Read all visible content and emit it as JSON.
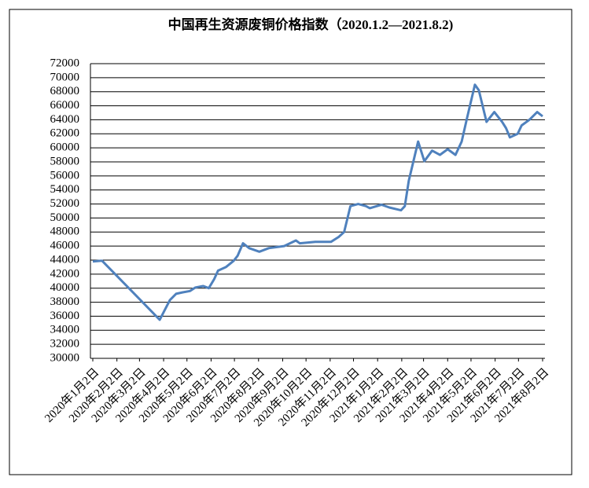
{
  "chart_data": {
    "type": "line",
    "title": "中国再生资源废铜价格指数（2020.1.2—2021.8.2)",
    "x": [
      "2020-01-02",
      "2020-01-12",
      "2020-01-14",
      "2020-03-28",
      "2020-04-10",
      "2020-04-18",
      "2020-04-26",
      "2020-05-06",
      "2020-05-13",
      "2020-05-23",
      "2020-05-30",
      "2020-06-06",
      "2020-06-11",
      "2020-06-21",
      "2020-07-01",
      "2020-07-06",
      "2020-07-13",
      "2020-07-21",
      "2020-08-03",
      "2020-08-15",
      "2020-09-04",
      "2020-09-19",
      "2020-09-24",
      "2020-10-14",
      "2020-11-03",
      "2020-11-13",
      "2020-11-20",
      "2020-11-28",
      "2020-12-08",
      "2020-12-18",
      "2020-12-23",
      "2021-01-07",
      "2021-01-17",
      "2021-02-01",
      "2021-02-06",
      "2021-02-11",
      "2021-02-23",
      "2021-03-03",
      "2021-03-13",
      "2021-03-23",
      "2021-04-02",
      "2021-04-12",
      "2021-04-20",
      "2021-04-27",
      "2021-05-07",
      "2021-05-12",
      "2021-05-22",
      "2021-06-01",
      "2021-06-11",
      "2021-06-16",
      "2021-06-21",
      "2021-07-01",
      "2021-07-06",
      "2021-07-16",
      "2021-07-26",
      "2021-08-02"
    ],
    "series": [
      {
        "color": "#4f81bd",
        "values": [
          43800,
          43900,
          43900,
          35500,
          38300,
          39200,
          39400,
          39600,
          40100,
          40300,
          40000,
          41300,
          42500,
          43000,
          43900,
          44600,
          46400,
          45700,
          45200,
          45700,
          46000,
          46800,
          46400,
          46600,
          46600,
          47300,
          48000,
          51700,
          52000,
          51700,
          51400,
          51900,
          51500,
          51100,
          51700,
          55300,
          60900,
          58100,
          59600,
          59000,
          59800,
          59000,
          60900,
          64300,
          69000,
          68200,
          63700,
          65100,
          63700,
          62800,
          61500,
          62000,
          63200,
          64000,
          65100,
          64500
        ]
      }
    ],
    "xlim": [
      "2020-01-02",
      "2021-08-02"
    ],
    "xticks": [
      {
        "value": "2020-01-02",
        "label": "2020年1月2日"
      },
      {
        "value": "2020-02-02",
        "label": "2020年2月2日"
      },
      {
        "value": "2020-03-02",
        "label": "2020年3月2日"
      },
      {
        "value": "2020-04-02",
        "label": "2020年4月2日"
      },
      {
        "value": "2020-05-02",
        "label": "2020年5月2日"
      },
      {
        "value": "2020-06-02",
        "label": "2020年6月2日"
      },
      {
        "value": "2020-07-02",
        "label": "2020年7月2日"
      },
      {
        "value": "2020-08-02",
        "label": "2020年8月2日"
      },
      {
        "value": "2020-09-02",
        "label": "2020年9月2日"
      },
      {
        "value": "2020-10-02",
        "label": "2020年10月2日"
      },
      {
        "value": "2020-11-02",
        "label": "2020年11月2日"
      },
      {
        "value": "2020-12-02",
        "label": "2020年12月2日"
      },
      {
        "value": "2021-01-02",
        "label": "2021年1月2日"
      },
      {
        "value": "2021-02-02",
        "label": "2021年2月2日"
      },
      {
        "value": "2021-03-02",
        "label": "2021年3月2日"
      },
      {
        "value": "2021-04-02",
        "label": "2021年4月2日"
      },
      {
        "value": "2021-05-02",
        "label": "2021年5月2日"
      },
      {
        "value": "2021-06-02",
        "label": "2021年6月2日"
      },
      {
        "value": "2021-07-02",
        "label": "2021年7月2日"
      },
      {
        "value": "2021-08-02",
        "label": "2021年8月2日"
      }
    ],
    "ylim": [
      30000,
      72000
    ],
    "yticks": [
      30000,
      32000,
      34000,
      36000,
      38000,
      40000,
      42000,
      44000,
      46000,
      48000,
      50000,
      52000,
      54000,
      56000,
      58000,
      60000,
      62000,
      64000,
      66000,
      68000,
      70000,
      72000
    ],
    "grid": true
  }
}
